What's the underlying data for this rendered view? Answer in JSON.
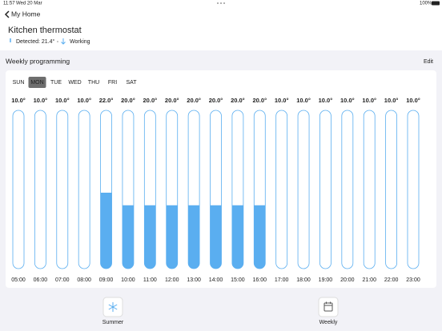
{
  "status_bar": {
    "time": "11:57",
    "date": "Wed 20 Mar",
    "battery": "100%"
  },
  "nav": {
    "back": "My Home"
  },
  "header": {
    "title": "Kitchen thermostat",
    "detected": "Detected: 21.4°",
    "status": "Working"
  },
  "section": {
    "title": "Weekly programming",
    "edit": "Edit"
  },
  "days": {
    "labels": [
      "SUN",
      "MON",
      "TUE",
      "WED",
      "THU",
      "FRI",
      "SAT"
    ],
    "selected": 1
  },
  "chart_data": {
    "type": "bar",
    "categories": [
      "05:00",
      "06:00",
      "07:00",
      "08:00",
      "09:00",
      "10:00",
      "11:00",
      "12:00",
      "13:00",
      "14:00",
      "15:00",
      "16:00",
      "17:00",
      "18:00",
      "19:00",
      "20:00",
      "21:00",
      "22:00",
      "23:00"
    ],
    "values": [
      10,
      10,
      10,
      10,
      22,
      20,
      20,
      20,
      20,
      20,
      20,
      20,
      10,
      10,
      10,
      10,
      10,
      10,
      10
    ],
    "value_labels": [
      "10.0°",
      "10.0°",
      "10.0°",
      "10.0°",
      "22.0°",
      "20.0°",
      "20.0°",
      "20.0°",
      "20.0°",
      "20.0°",
      "20.0°",
      "20.0°",
      "10.0°",
      "10.0°",
      "10.0°",
      "10.0°",
      "10.0°",
      "10.0°",
      "10.0°"
    ],
    "color": "#5aaef0",
    "ylim": [
      10,
      35
    ]
  },
  "buttons": {
    "summer": "Summer",
    "weekly": "Weekly"
  }
}
